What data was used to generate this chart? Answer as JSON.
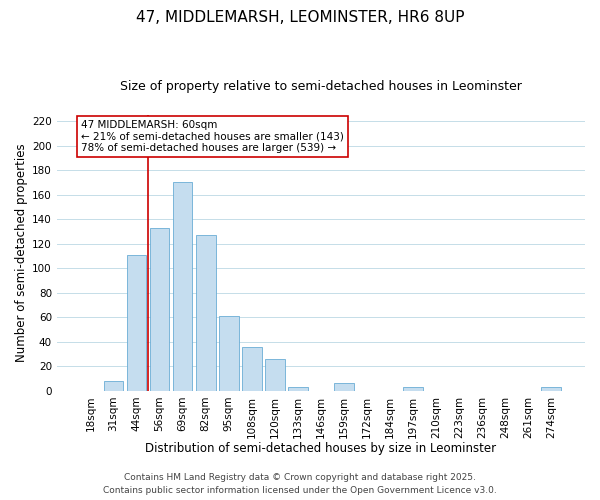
{
  "title": "47, MIDDLEMARSH, LEOMINSTER, HR6 8UP",
  "subtitle": "Size of property relative to semi-detached houses in Leominster",
  "xlabel": "Distribution of semi-detached houses by size in Leominster",
  "ylabel": "Number of semi-detached properties",
  "bar_labels": [
    "18sqm",
    "31sqm",
    "44sqm",
    "56sqm",
    "69sqm",
    "82sqm",
    "95sqm",
    "108sqm",
    "120sqm",
    "133sqm",
    "146sqm",
    "159sqm",
    "172sqm",
    "184sqm",
    "197sqm",
    "210sqm",
    "223sqm",
    "236sqm",
    "248sqm",
    "261sqm",
    "274sqm"
  ],
  "bar_values": [
    0,
    8,
    111,
    133,
    170,
    127,
    61,
    36,
    26,
    3,
    0,
    6,
    0,
    0,
    3,
    0,
    0,
    0,
    0,
    0,
    3
  ],
  "bar_color": "#c5ddef",
  "bar_edge_color": "#6aadd5",
  "annotation_text_line1": "47 MIDDLEMARSH: 60sqm",
  "annotation_text_line2": "← 21% of semi-detached houses are smaller (143)",
  "annotation_text_line3": "78% of semi-detached houses are larger (539) →",
  "annotation_box_color": "#ffffff",
  "annotation_box_edge": "#cc0000",
  "vline_color": "#cc0000",
  "vline_bar_index": 3,
  "ylim": [
    0,
    225
  ],
  "yticks": [
    0,
    20,
    40,
    60,
    80,
    100,
    120,
    140,
    160,
    180,
    200,
    220
  ],
  "background_color": "#ffffff",
  "grid_color": "#c5dde8",
  "footer_line1": "Contains HM Land Registry data © Crown copyright and database right 2025.",
  "footer_line2": "Contains public sector information licensed under the Open Government Licence v3.0.",
  "title_fontsize": 11,
  "subtitle_fontsize": 9,
  "axis_label_fontsize": 8.5,
  "tick_fontsize": 7.5,
  "annotation_fontsize": 7.5,
  "footer_fontsize": 6.5
}
